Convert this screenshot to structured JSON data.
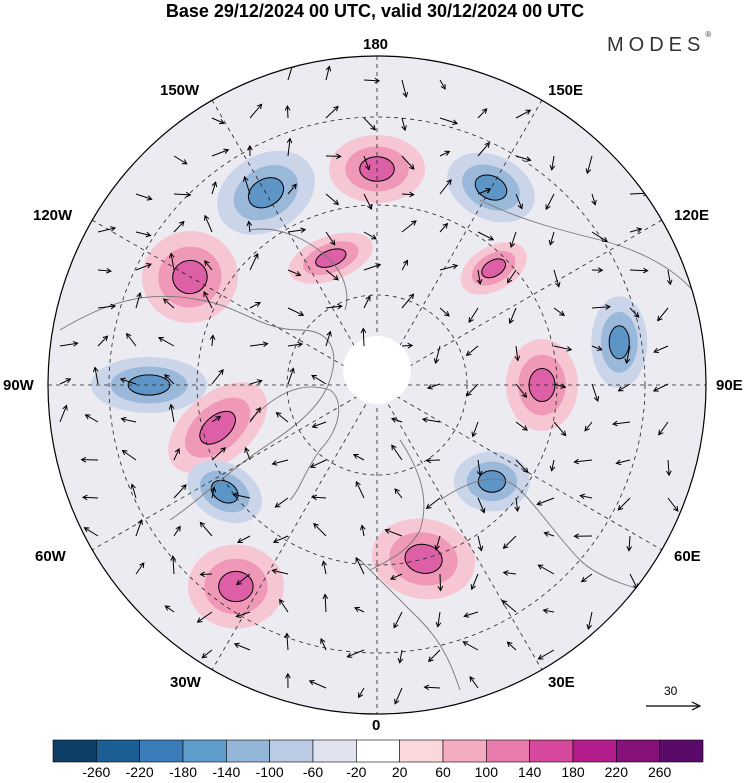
{
  "title": "Base 29/12/2024 00 UTC, valid 30/12/2024 00 UTC",
  "brand": "MODES",
  "brand_mark": "®",
  "longitude_labels": {
    "n180": "180",
    "w150": "150W",
    "e150": "150E",
    "w120": "120W",
    "e120": "120E",
    "w90": "90W",
    "e90": "90E",
    "w60": "60W",
    "e60": "60E",
    "w30": "30W",
    "e30": "30E",
    "s0": "0"
  },
  "wind_scale": {
    "value": "30"
  },
  "colorbar": {
    "ticks": [
      "-260",
      "-220",
      "-180",
      "-140",
      "-100",
      "-60",
      "-20",
      "20",
      "60",
      "100",
      "140",
      "180",
      "220",
      "260"
    ],
    "colors": [
      "#0d3f66",
      "#1c5f95",
      "#3a7db8",
      "#5f9dcc",
      "#93b6d9",
      "#bccbe4",
      "#e2e3f0",
      "#ffffff",
      "#fad8dc",
      "#f3acc0",
      "#e87aad",
      "#d6489d",
      "#b31d8c",
      "#861179",
      "#5a0b6a"
    ]
  },
  "map": {
    "projection": "north-polar-stereographic",
    "field": "geopotential anomaly (shaded) with wind vectors",
    "anomaly_centres": [
      {
        "sign": "negative",
        "near": "150W"
      },
      {
        "sign": "positive",
        "near": "180"
      },
      {
        "sign": "negative",
        "near": "150E"
      },
      {
        "sign": "positive",
        "near": "120W"
      },
      {
        "sign": "positive",
        "near": "160W, Alaska"
      },
      {
        "sign": "negative",
        "near": "90W"
      },
      {
        "sign": "positive",
        "near": "75W, Labrador"
      },
      {
        "sign": "negative",
        "near": "55W"
      },
      {
        "sign": "positive",
        "near": "35W"
      },
      {
        "sign": "positive",
        "near": "15E, Europe"
      },
      {
        "sign": "positive",
        "near": "90E"
      },
      {
        "sign": "negative",
        "near": "100E"
      },
      {
        "sign": "positive",
        "near": "135E"
      },
      {
        "sign": "negative",
        "near": "50E"
      }
    ]
  }
}
